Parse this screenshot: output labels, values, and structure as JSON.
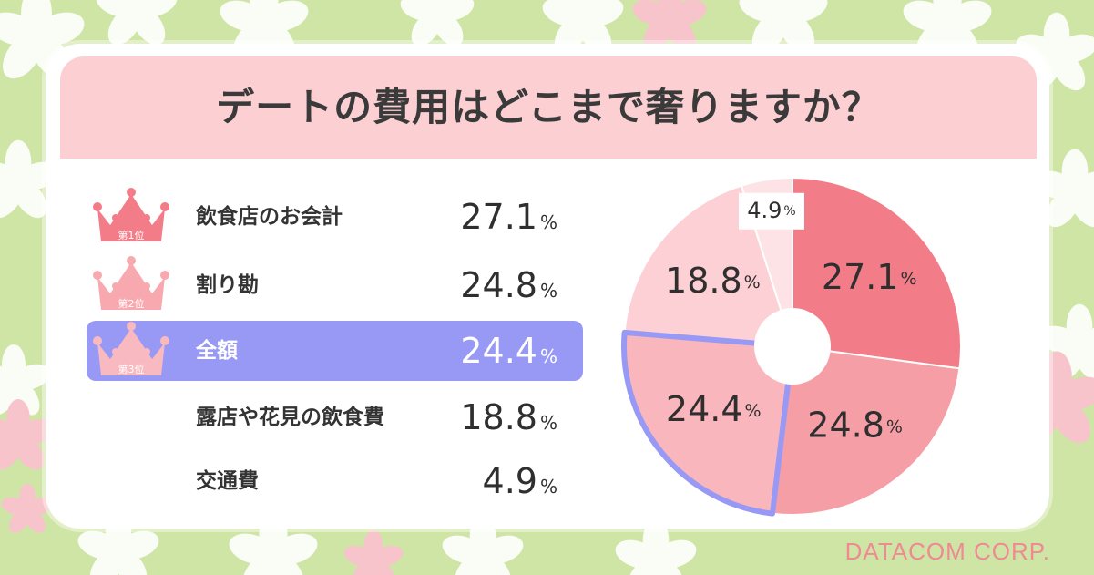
{
  "title": "デートの費用はどこまで奢りますか？",
  "percent_sign": "%",
  "ranks": [
    "第1位",
    "第2位",
    "第3位"
  ],
  "chart_data": {
    "type": "pie",
    "title": "デートの費用はどこまで奢りますか？",
    "unit": "%",
    "categories": [
      "飲食店のお会計",
      "割り勘",
      "全額",
      "露店や花見の飲食費",
      "交通費"
    ],
    "values": [
      27.1,
      24.8,
      24.4,
      18.8,
      4.9
    ],
    "value_labels": [
      "27.1",
      "24.8",
      "24.4",
      "18.8",
      "4.9"
    ],
    "colors": [
      "#f27d89",
      "#f69ea6",
      "#f9b6bc",
      "#fcd0d4",
      "#fde3e5"
    ],
    "highlight_index": 2,
    "highlight_color": "#9898f5",
    "donut_hole": true
  },
  "credit": "DATACOM CORP."
}
